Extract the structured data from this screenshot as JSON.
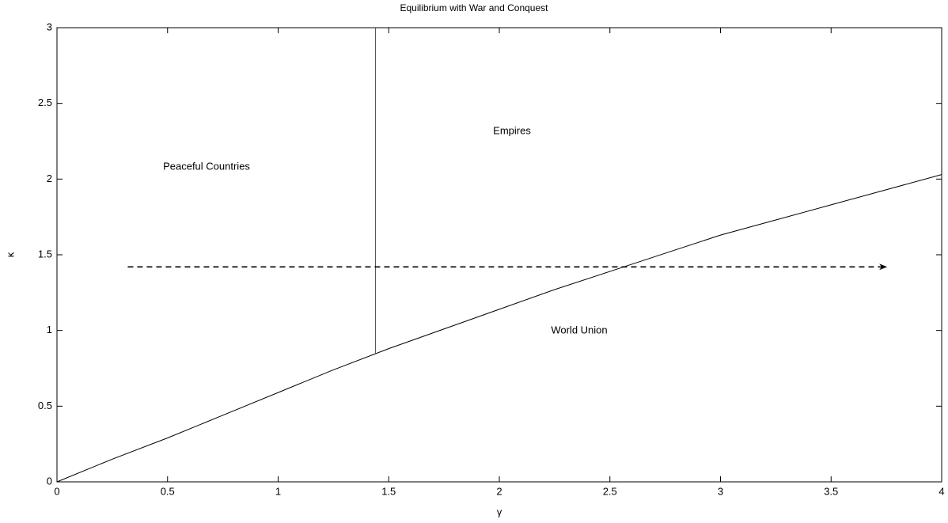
{
  "chart_data": {
    "type": "line",
    "title": "Equilibrium with War and Conquest",
    "x_label": "γ",
    "y_label": "κ",
    "xlim": [
      0,
      4
    ],
    "ylim": [
      0,
      3
    ],
    "xticks": [
      0,
      0.5,
      1,
      1.5,
      2,
      2.5,
      3,
      3.5,
      4
    ],
    "yticks": [
      0,
      0.5,
      1,
      1.5,
      2,
      2.5,
      3
    ],
    "grid": false,
    "series": [
      {
        "color": "#000000",
        "dashed": false,
        "arrow": false,
        "x": [
          0,
          0.25,
          0.5,
          0.75,
          1,
          1.25,
          1.5,
          1.75,
          2,
          2.25,
          2.5,
          2.75,
          3,
          3.25,
          3.5,
          3.75,
          4
        ],
        "values": [
          0,
          0.15,
          0.29,
          0.44,
          0.59,
          0.74,
          0.88,
          1.01,
          1.14,
          1.27,
          1.39,
          1.51,
          1.63,
          1.73,
          1.83,
          1.93,
          2.03
        ]
      },
      {
        "color": "#555555",
        "dashed": false,
        "arrow": false,
        "x": [
          1.44,
          1.44
        ],
        "values": [
          0.85,
          3
        ]
      },
      {
        "color": "#000000",
        "dashed": true,
        "arrow": true,
        "x": [
          0.32,
          3.75
        ],
        "values": [
          1.42,
          1.42
        ]
      }
    ],
    "annotations": [
      "Peaceful Countries",
      "Empires",
      "World Union"
    ]
  }
}
